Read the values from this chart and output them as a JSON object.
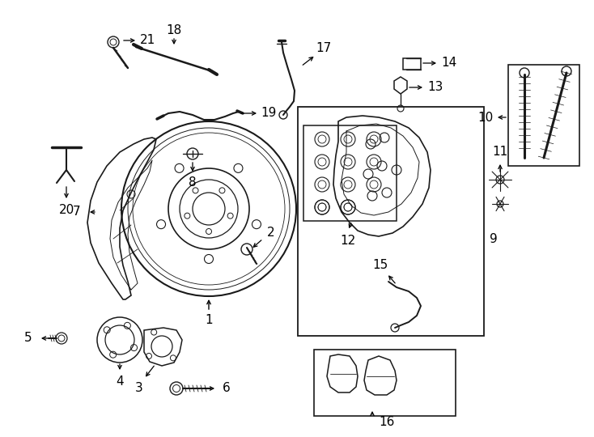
{
  "bg_color": "#ffffff",
  "line_color": "#1a1a1a",
  "fig_width": 7.34,
  "fig_height": 5.4,
  "dpi": 100,
  "xlim": [
    0,
    734
  ],
  "ylim": [
    0,
    540
  ]
}
